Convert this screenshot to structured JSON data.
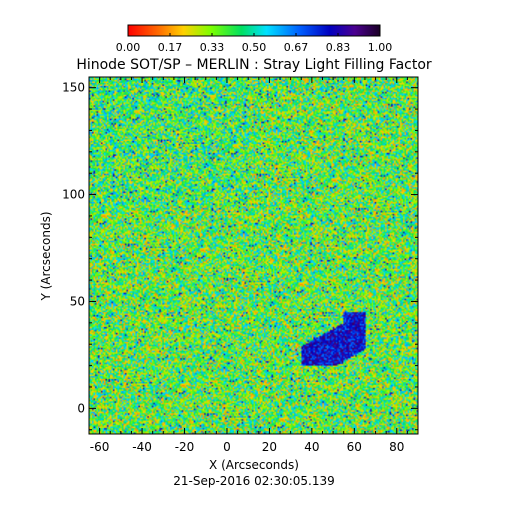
{
  "chart_data": {
    "type": "heatmap",
    "title": "Hinode SOT/SP – MERLIN : Stray Light Filling Factor",
    "xlabel": "X (Arcseconds)",
    "ylabel": "Y (Arcseconds)",
    "xlim": [
      -65,
      90
    ],
    "ylim": [
      -12,
      155
    ],
    "x_ticks": [
      -60,
      -40,
      -20,
      0,
      20,
      40,
      60,
      80
    ],
    "y_ticks": [
      0,
      50,
      100,
      150
    ],
    "colorbar": {
      "range": [
        0,
        1
      ],
      "tick_labels": [
        "0.00",
        "0.17",
        "0.33",
        "0.50",
        "0.67",
        "0.83",
        "1.00"
      ],
      "colormap": "rainbow (red → yellow → green → cyan → blue → purple → black)"
    },
    "field_description": "noisy mix dominated by green/yellow values (~0.25–0.55)",
    "low_filling_factor_region": {
      "note": "blue/purple cluster",
      "x_range": [
        35,
        65
      ],
      "y_range": [
        20,
        45
      ]
    },
    "footer": "21-Sep-2016 02:30:05.139"
  }
}
